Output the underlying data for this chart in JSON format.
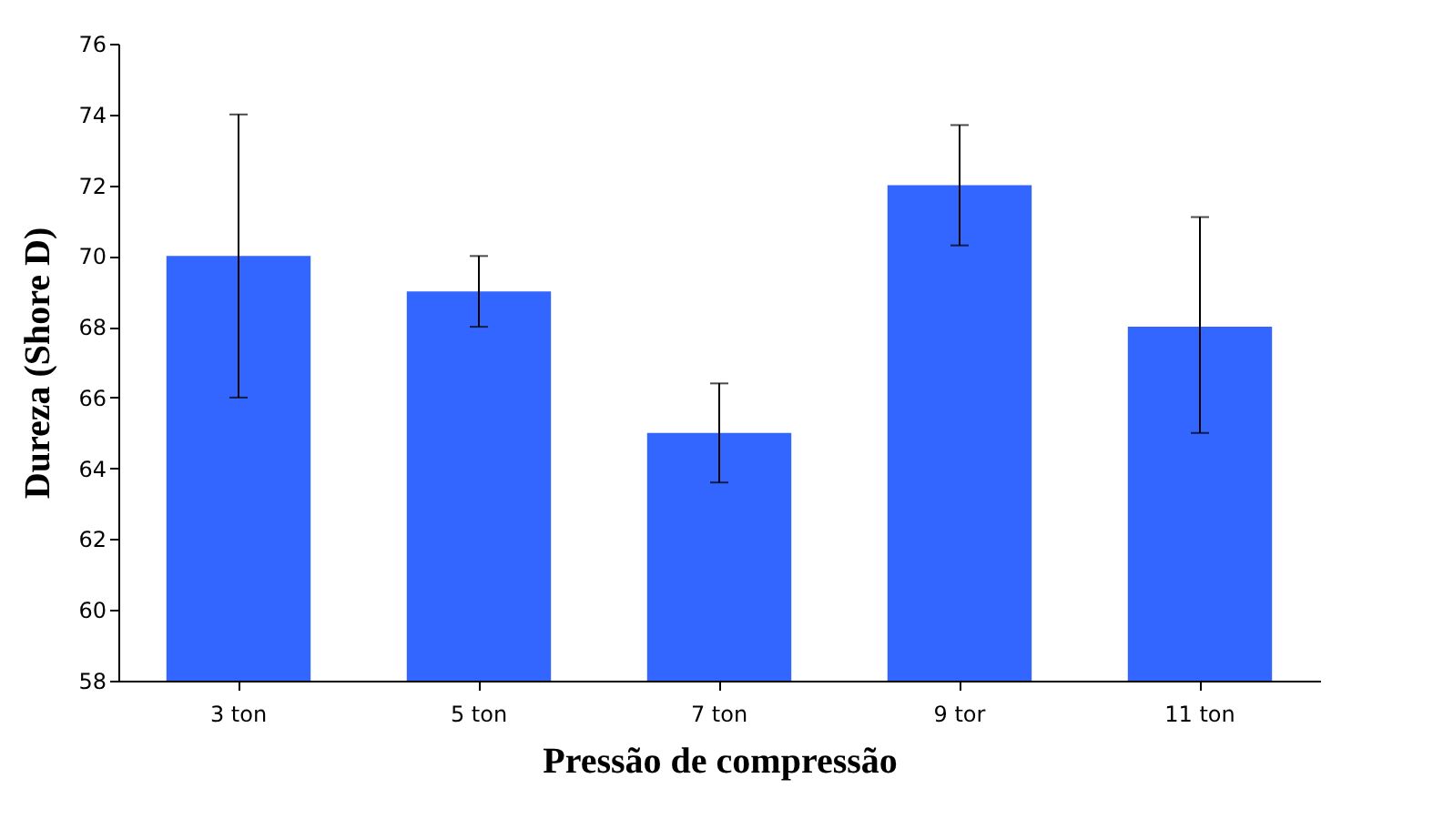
{
  "chart_data": {
    "type": "bar",
    "xlabel": "Pressão de compressão",
    "ylabel": "Dureza (Shore D)",
    "categories": [
      "3 ton",
      "5 ton",
      "7 ton",
      "9 tor",
      "11 ton"
    ],
    "values": [
      70,
      69,
      65,
      72,
      68
    ],
    "errors": [
      4,
      1,
      [
        63.6,
        66.4
      ],
      [
        70.3,
        73.7
      ],
      [
        65,
        71.1
      ]
    ],
    "color": "#3366ff",
    "ylim": [
      58,
      76
    ],
    "yticks": [
      58,
      60,
      62,
      64,
      66,
      68,
      70,
      72,
      74,
      76
    ],
    "grid": false
  }
}
